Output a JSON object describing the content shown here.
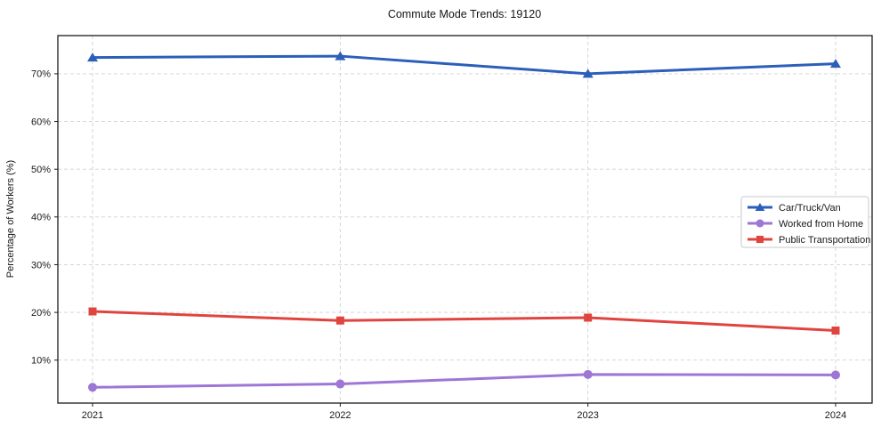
{
  "title": "Commute Mode Trends: 19120",
  "chart_data": {
    "type": "line",
    "title": "Commute Mode Trends: 19120",
    "xlabel": "",
    "ylabel": "Percentage of Workers (%)",
    "x": [
      "2021",
      "2022",
      "2023",
      "2024"
    ],
    "series": [
      {
        "name": "Car/Truck/Van",
        "color": "#2c5fba",
        "marker": "triangle",
        "values": [
          73.4,
          73.7,
          70.0,
          72.1
        ]
      },
      {
        "name": "Worked from Home",
        "color": "#9d76d6",
        "marker": "circle",
        "values": [
          4.3,
          5.0,
          7.0,
          6.9
        ]
      },
      {
        "name": "Public Transportation",
        "color": "#e0443f",
        "marker": "square",
        "values": [
          20.2,
          18.3,
          18.9,
          16.2
        ]
      }
    ],
    "yticks": [
      {
        "value": 10,
        "label": "10%"
      },
      {
        "value": 20,
        "label": "20%"
      },
      {
        "value": 30,
        "label": "30%"
      },
      {
        "value": 40,
        "label": "40%"
      },
      {
        "value": 50,
        "label": "50%"
      },
      {
        "value": 60,
        "label": "60%"
      },
      {
        "value": 70,
        "label": "70%"
      }
    ],
    "ylim": [
      1,
      78
    ],
    "grid": true,
    "legend_position": "center-right"
  }
}
